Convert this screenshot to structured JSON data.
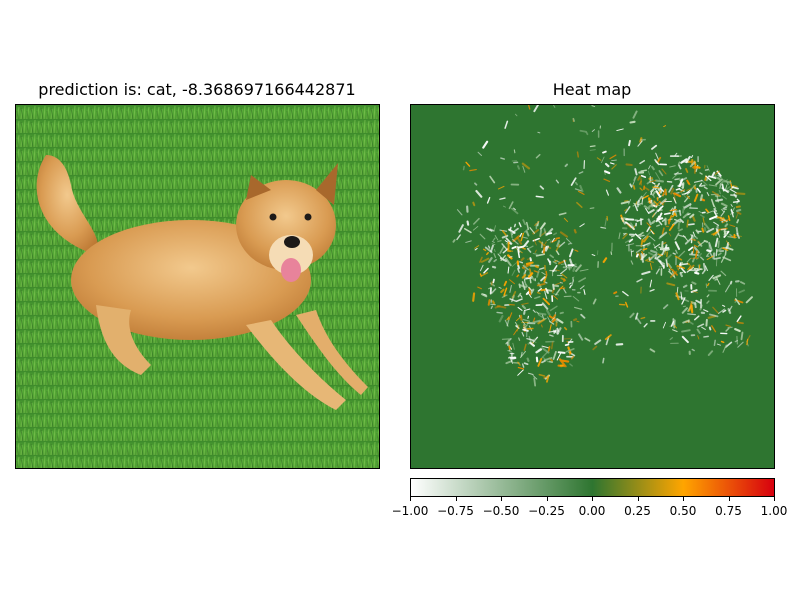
{
  "left_panel": {
    "title": "prediction is: cat, -8.368697166442871",
    "image_description_icon": "dog-on-grass-photo"
  },
  "right_panel": {
    "title": "Heat map"
  },
  "colorbar": {
    "ticks": [
      "−1.00",
      "−0.75",
      "−0.50",
      "−0.25",
      "0.00",
      "0.25",
      "0.50",
      "0.75",
      "1.00"
    ],
    "tick_values": [
      -1.0,
      -0.75,
      -0.5,
      -0.25,
      0.0,
      0.25,
      0.5,
      0.75,
      1.0
    ],
    "colors": {
      "min": "#ffffff",
      "zero": "#2e7530",
      "mid_pos": "#ffa500",
      "max": "#d7000f"
    }
  },
  "chart_data": {
    "type": "heatmap",
    "title": "Heat map",
    "vmin": -1.0,
    "vmax": 1.0,
    "colormap": [
      "#ffffff",
      "#2e7530",
      "#ffa500",
      "#d7000f"
    ],
    "background_value": 0.0
  }
}
